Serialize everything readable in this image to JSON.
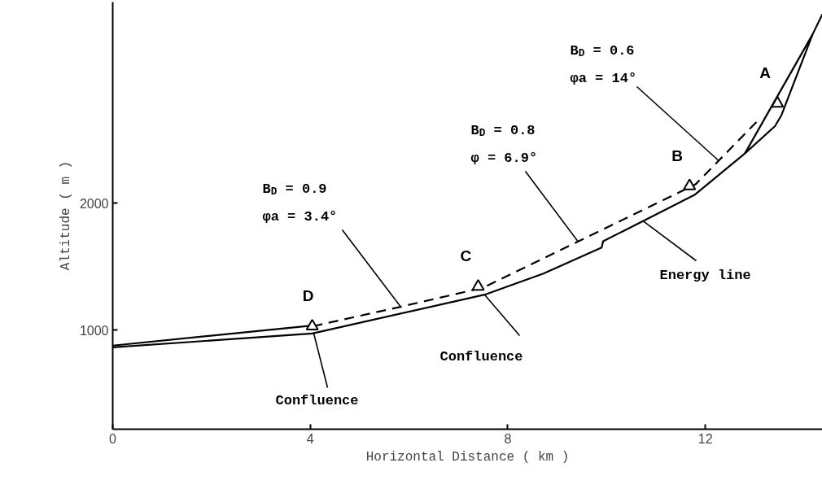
{
  "chart_data": {
    "type": "line",
    "xlabel": "Horizontal Distance ( km )",
    "ylabel": "Altitude ( m )",
    "xlim": [
      0,
      14.37
    ],
    "ylim": [
      223,
      3580
    ],
    "xticks": [
      0,
      4,
      8,
      12
    ],
    "yticks": [
      1000,
      2000
    ],
    "grid": false,
    "series": [
      {
        "color": "#000000",
        "line_style": "solid",
        "x": [
          0,
          4.04,
          7.53,
          8.72,
          9.9,
          9.93,
          11.78,
          12.8,
          13.41,
          13.54,
          14.17,
          14.37
        ],
        "values": [
          866,
          975,
          1280,
          1446,
          1650,
          1700,
          2064,
          2390,
          2605,
          2690,
          3325,
          3485
        ]
      },
      {
        "color": "#000000",
        "line_style": "solid",
        "x": [
          12.8,
          14.17
        ],
        "values": [
          2390,
          3325
        ]
      },
      {
        "color": "#000000",
        "line_style": "solid",
        "x": [
          0,
          4.04
        ],
        "values": [
          880,
          1038
        ]
      },
      {
        "color": "#000000",
        "line_style": "dashed",
        "x": [
          4.05,
          5.83,
          7.5,
          11.8,
          13.05
        ],
        "values": [
          1032,
          1185,
          1335,
          2147,
          2643
        ]
      },
      {
        "type": "scatter",
        "color": "#000000",
        "marker": "triangle",
        "x": [
          13.46,
          11.68,
          7.4,
          4.04
        ],
        "values": [
          2783,
          2134,
          1344,
          1032
        ]
      }
    ],
    "annotations": [
      {
        "text": "B$_{D}$ = 0.6\nφa = 14°",
        "x": 12.27,
        "y": 2333
      },
      {
        "text": "B$_{D}$ = 0.8\nφ = 6.9°",
        "x": 9.42,
        "y": 1698
      },
      {
        "text": "B$_{D}$ = 0.9\nφa = 3.4°",
        "x": 5.83,
        "y": 1185
      },
      {
        "text": "Energy line",
        "x": 10.74,
        "y": 1859
      },
      {
        "text": "Confluence",
        "x": 7.53,
        "y": 1280
      },
      {
        "text": "Confluence",
        "x": 4.07,
        "y": 976
      },
      {
        "text": "A",
        "x": 13.46,
        "y": 2783
      },
      {
        "text": "B",
        "x": 11.68,
        "y": 2134
      },
      {
        "text": "C",
        "x": 7.4,
        "y": 1344
      },
      {
        "text": "D",
        "x": 4.04,
        "y": 1032
      }
    ]
  }
}
